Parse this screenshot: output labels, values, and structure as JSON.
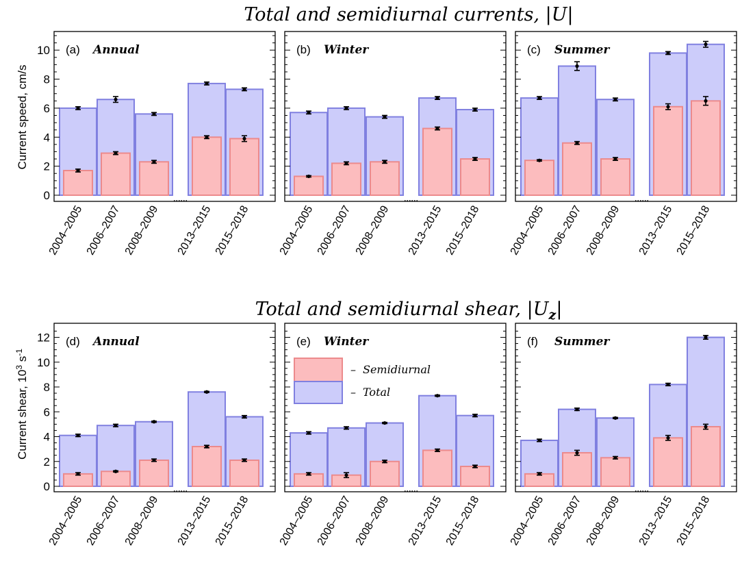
{
  "titles": {
    "top_main": "Total and semidiurnal currents, |",
    "top_var": "U",
    "top_end": "|",
    "bottom_main": "Total and semidiurnal shear, |",
    "bottom_var": "U",
    "bottom_sub": "z",
    "bottom_end": "|"
  },
  "ylabels": {
    "top": "Current speed, cm/s",
    "bottom": "Current shear, 10",
    "bottom_sup1": "3",
    "bottom_mid": " s",
    "bottom_sup2": "-1"
  },
  "legend": {
    "dash": "–",
    "semidiurnal": "Semidiurnal",
    "total": "Total"
  },
  "colors": {
    "total_fill": "#ccccfa",
    "total_edge": "#8080e0",
    "semi_fill": "#fcbcbe",
    "semi_edge": "#ec8a8c",
    "err": "#000000"
  },
  "chart_data": [
    {
      "type": "bar",
      "id": "a",
      "label": "(a)",
      "name": "Annual",
      "row": "top",
      "categories": [
        "2004–2005",
        "2006–2007",
        "2008–2009",
        "2013–2015",
        "2015–2018"
      ],
      "ylim": [
        0,
        11
      ],
      "yticks": [
        0,
        2,
        4,
        6,
        8,
        10
      ],
      "series": [
        {
          "name": "Total",
          "values": [
            6.0,
            6.6,
            5.6,
            7.7,
            7.3
          ],
          "err": [
            0.1,
            0.2,
            0.1,
            0.1,
            0.1
          ]
        },
        {
          "name": "Semidiurnal",
          "values": [
            1.7,
            2.9,
            2.3,
            4.0,
            3.9
          ],
          "err": [
            0.1,
            0.1,
            0.1,
            0.1,
            0.2
          ]
        }
      ]
    },
    {
      "type": "bar",
      "id": "b",
      "label": "(b)",
      "name": "Winter",
      "row": "top",
      "categories": [
        "2004–2005",
        "2006–2007",
        "2008–2009",
        "2013–2015",
        "2015–2018"
      ],
      "ylim": [
        0,
        11
      ],
      "yticks": [
        0,
        2,
        4,
        6,
        8,
        10
      ],
      "series": [
        {
          "name": "Total",
          "values": [
            5.7,
            6.0,
            5.4,
            6.7,
            5.9
          ],
          "err": [
            0.1,
            0.1,
            0.1,
            0.1,
            0.1
          ]
        },
        {
          "name": "Semidiurnal",
          "values": [
            1.3,
            2.2,
            2.3,
            4.6,
            2.5
          ],
          "err": [
            0.05,
            0.1,
            0.1,
            0.1,
            0.1
          ]
        }
      ]
    },
    {
      "type": "bar",
      "id": "c",
      "label": "(c)",
      "name": "Summer",
      "row": "top",
      "categories": [
        "2004–2005",
        "2006–2007",
        "2008–2009",
        "2013–2015",
        "2015–2018"
      ],
      "ylim": [
        0,
        11
      ],
      "yticks": [
        0,
        2,
        4,
        6,
        8,
        10
      ],
      "series": [
        {
          "name": "Total",
          "values": [
            6.7,
            8.9,
            6.6,
            9.8,
            10.4
          ],
          "err": [
            0.1,
            0.3,
            0.1,
            0.1,
            0.2
          ]
        },
        {
          "name": "Semidiurnal",
          "values": [
            2.4,
            3.6,
            2.5,
            6.1,
            6.5
          ],
          "err": [
            0.05,
            0.1,
            0.1,
            0.2,
            0.3
          ]
        }
      ]
    },
    {
      "type": "bar",
      "id": "d",
      "label": "(d)",
      "name": "Annual",
      "row": "bottom",
      "categories": [
        "2004–2005",
        "2006–2007",
        "2008–2009",
        "2013–2015",
        "2015–2018"
      ],
      "ylim": [
        0,
        12.8
      ],
      "yticks": [
        0,
        2,
        4,
        6,
        8,
        10,
        12
      ],
      "series": [
        {
          "name": "Total",
          "values": [
            4.1,
            4.9,
            5.2,
            7.6,
            5.6
          ],
          "err": [
            0.1,
            0.1,
            0.05,
            0.05,
            0.1
          ]
        },
        {
          "name": "Semidiurnal",
          "values": [
            1.0,
            1.2,
            2.1,
            3.2,
            2.1
          ],
          "err": [
            0.1,
            0.05,
            0.1,
            0.1,
            0.1
          ]
        }
      ]
    },
    {
      "type": "bar",
      "id": "e",
      "label": "(e)",
      "name": "Winter",
      "row": "bottom",
      "categories": [
        "2004–2005",
        "2006–2007",
        "2008–2009",
        "2013–2015",
        "2015–2018"
      ],
      "ylim": [
        0,
        12.8
      ],
      "yticks": [
        0,
        2,
        4,
        6,
        8,
        10,
        12
      ],
      "series": [
        {
          "name": "Total",
          "values": [
            4.3,
            4.7,
            5.1,
            7.3,
            5.7
          ],
          "err": [
            0.1,
            0.1,
            0.05,
            0.05,
            0.1
          ]
        },
        {
          "name": "Semidiurnal",
          "values": [
            1.0,
            0.9,
            2.0,
            2.9,
            1.6
          ],
          "err": [
            0.1,
            0.2,
            0.1,
            0.1,
            0.1
          ]
        }
      ]
    },
    {
      "type": "bar",
      "id": "f",
      "label": "(f)",
      "name": "Summer",
      "row": "bottom",
      "categories": [
        "2004–2005",
        "2006–2007",
        "2008–2009",
        "2013–2015",
        "2015–2018"
      ],
      "ylim": [
        0,
        12.8
      ],
      "yticks": [
        0,
        2,
        4,
        6,
        8,
        10,
        12
      ],
      "series": [
        {
          "name": "Total",
          "values": [
            3.7,
            6.2,
            5.5,
            8.2,
            12.0
          ],
          "err": [
            0.1,
            0.1,
            0.05,
            0.1,
            0.15
          ]
        },
        {
          "name": "Semidiurnal",
          "values": [
            1.0,
            2.7,
            2.3,
            3.9,
            4.8
          ],
          "err": [
            0.1,
            0.2,
            0.1,
            0.2,
            0.2
          ]
        }
      ]
    }
  ]
}
